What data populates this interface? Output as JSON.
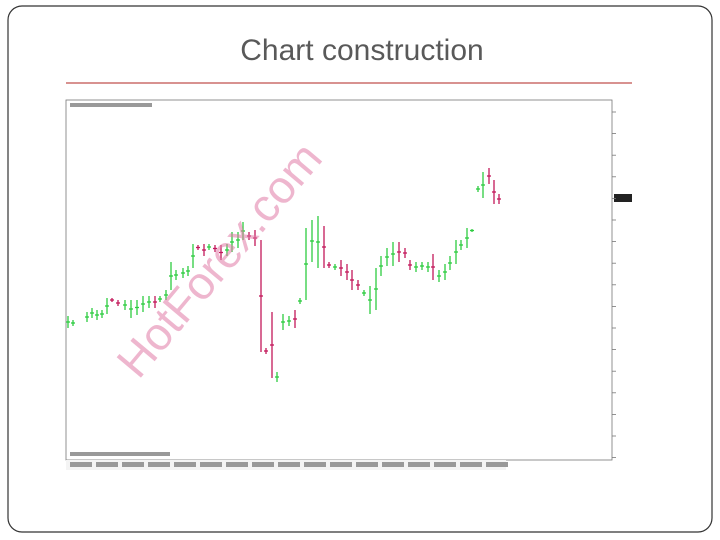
{
  "slide": {
    "title": "Chart construction",
    "watermark": "HotForex.com"
  }
}
